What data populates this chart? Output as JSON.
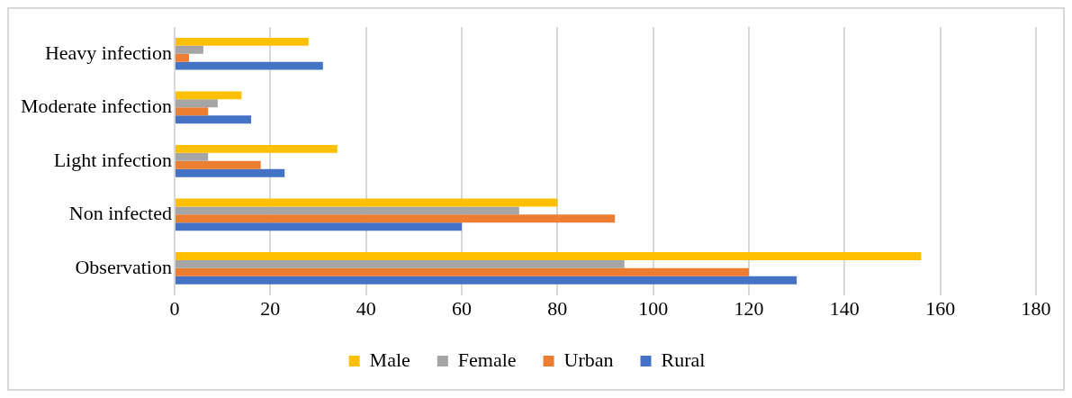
{
  "chart_data": {
    "type": "bar",
    "orientation": "horizontal",
    "categories": [
      "Heavy infection",
      "Moderate infection",
      "Light infection",
      "Non infected",
      "Observation"
    ],
    "series": [
      {
        "name": "Male",
        "color": "#ffc000",
        "values": [
          28,
          14,
          34,
          80,
          156
        ]
      },
      {
        "name": "Female",
        "color": "#a5a5a5",
        "values": [
          6,
          9,
          7,
          72,
          94
        ]
      },
      {
        "name": "Urban",
        "color": "#ed7d31",
        "values": [
          3,
          7,
          18,
          92,
          120
        ]
      },
      {
        "name": "Rural",
        "color": "#4472c4",
        "values": [
          31,
          16,
          23,
          60,
          130
        ]
      }
    ],
    "xlim": [
      0,
      180
    ],
    "xticks": [
      0,
      20,
      40,
      60,
      80,
      100,
      120,
      140,
      160,
      180
    ],
    "grid": "x",
    "legend": "bottom"
  }
}
